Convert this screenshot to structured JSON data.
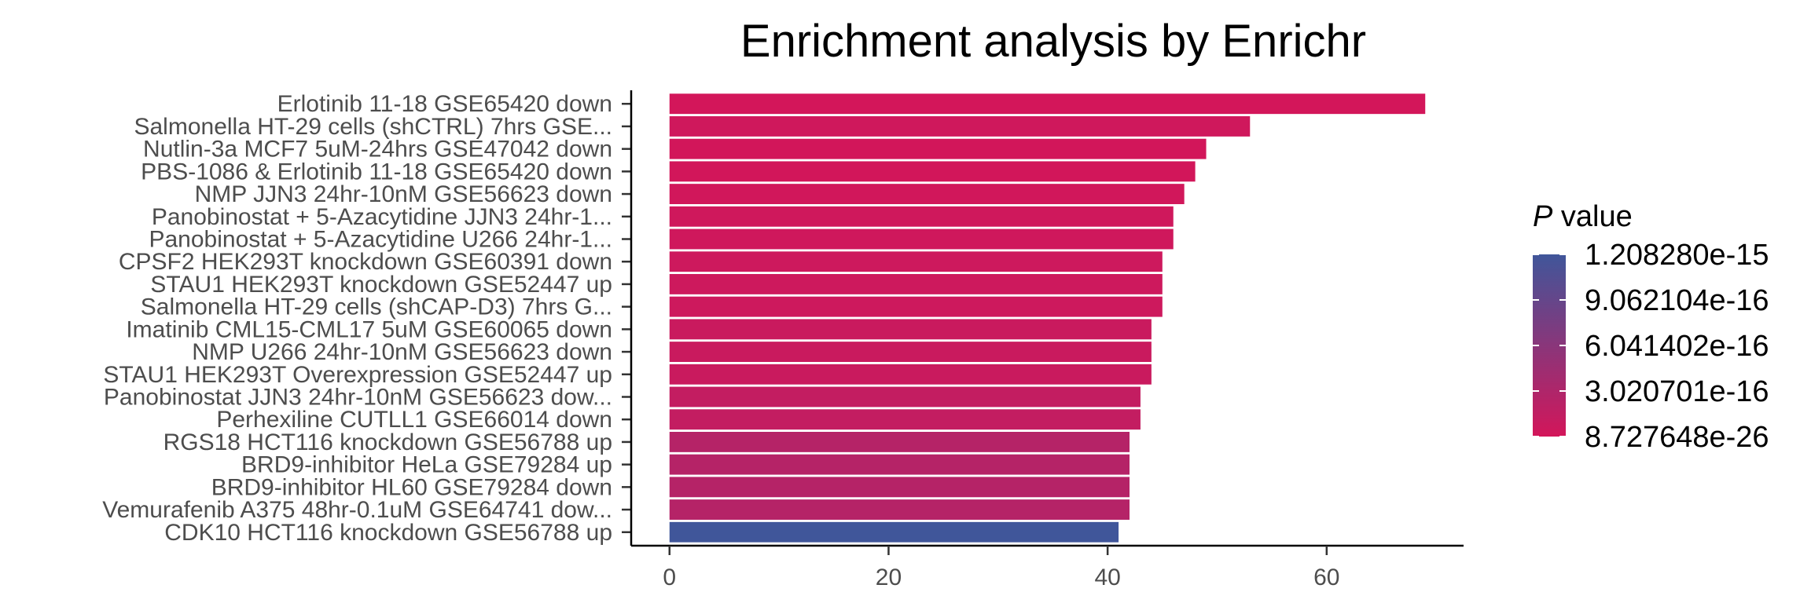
{
  "chart_data": {
    "type": "bar",
    "orientation": "horizontal",
    "title": "Enrichment analysis by Enrichr",
    "xlabel": "",
    "ylabel": "",
    "xlim": [
      -3.5,
      72.5
    ],
    "x_ticks": [
      "0",
      "20",
      "40",
      "60"
    ],
    "grid": false,
    "legend_position": "right",
    "categories": [
      "Erlotinib 11-18 GSE65420 down",
      "Salmonella HT-29 cells (shCTRL) 7hrs GSE...",
      "Nutlin-3a MCF7 5uM-24hrs GSE47042 down",
      "PBS-1086 & Erlotinib 11-18 GSE65420 down",
      "NMP JJN3 24hr-10nM GSE56623 down",
      "Panobinostat + 5-Azacytidine JJN3 24hr-1...",
      "Panobinostat + 5-Azacytidine U266 24hr-1...",
      "CPSF2 HEK293T knockdown GSE60391 down",
      "STAU1 HEK293T knockdown GSE52447 up",
      "Salmonella HT-29 cells (shCAP-D3) 7hrs G...",
      "Imatinib CML15-CML17 5uM GSE60065 down",
      "NMP U266 24hr-10nM GSE56623 down",
      "STAU1 HEK293T Overexpression GSE52447 up",
      "Panobinostat JJN3 24hr-10nM GSE56623 dow...",
      "Perhexiline CUTLL1 GSE66014 down",
      "RGS18 HCT116 knockdown GSE56788 up",
      "BRD9-inhibitor HeLa GSE79284 up",
      "BRD9-inhibitor HL60 GSE79284 down",
      "Vemurafenib A375 48hr-0.1uM GSE64741 dow...",
      "CDK10 HCT116 knockdown GSE56788 up"
    ],
    "values": [
      69,
      53,
      49,
      48,
      47,
      46,
      46,
      45,
      45,
      45,
      44,
      44,
      44,
      43,
      43,
      42,
      42,
      42,
      42,
      41
    ],
    "p_values": [
      8.727648e-26,
      3e-17,
      6e-18,
      9e-18,
      1.5e-17,
      3e-17,
      3e-17,
      5e-17,
      5e-17,
      5e-17,
      8e-17,
      8e-17,
      8e-17,
      1.3e-16,
      1.3e-16,
      2.5e-16,
      2.5e-16,
      2.5e-16,
      2.5e-16,
      1.20828e-15
    ],
    "legend": {
      "title_italic": "P",
      "title_rest": " value",
      "labels": [
        "1.208280e-15",
        "9.062104e-16",
        "6.041402e-16",
        "3.020701e-16",
        "8.727648e-26"
      ],
      "low_color": "#d3165a",
      "high_color": "#40569a"
    }
  }
}
